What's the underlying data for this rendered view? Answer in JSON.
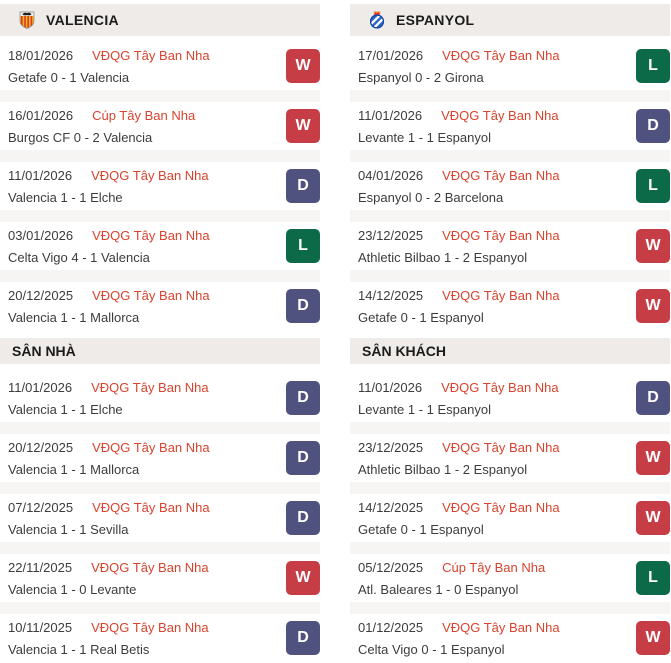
{
  "colors": {
    "win": "#c63d45",
    "draw": "#4f527e",
    "loss": "#0d6a48",
    "league_link": "#d8432e",
    "header_band_bg": "#eeebe8",
    "row_separator_bg": "#f7f5f3"
  },
  "left": {
    "team": "VALENCIA",
    "crest": "valencia-crest-icon",
    "recent": [
      {
        "date": "18/01/2026",
        "league": "VĐQG Tây Ban Nha",
        "score": "Getafe 0 - 1 Valencia",
        "result": "W"
      },
      {
        "date": "16/01/2026",
        "league": "Cúp Tây Ban Nha",
        "score": "Burgos CF 0 - 2 Valencia",
        "result": "W"
      },
      {
        "date": "11/01/2026",
        "league": "VĐQG Tây Ban Nha",
        "score": "Valencia 1 - 1 Elche",
        "result": "D"
      },
      {
        "date": "03/01/2026",
        "league": "VĐQG Tây Ban Nha",
        "score": "Celta Vigo 4 - 1 Valencia",
        "result": "L"
      },
      {
        "date": "20/12/2025",
        "league": "VĐQG Tây Ban Nha",
        "score": "Valencia 1 - 1 Mallorca",
        "result": "D"
      }
    ],
    "section_title": "SÂN NHÀ",
    "section": [
      {
        "date": "11/01/2026",
        "league": "VĐQG Tây Ban Nha",
        "score": "Valencia 1 - 1 Elche",
        "result": "D"
      },
      {
        "date": "20/12/2025",
        "league": "VĐQG Tây Ban Nha",
        "score": "Valencia 1 - 1 Mallorca",
        "result": "D"
      },
      {
        "date": "07/12/2025",
        "league": "VĐQG Tây Ban Nha",
        "score": "Valencia 1 - 1 Sevilla",
        "result": "D"
      },
      {
        "date": "22/11/2025",
        "league": "VĐQG Tây Ban Nha",
        "score": "Valencia 1 - 0 Levante",
        "result": "W"
      },
      {
        "date": "10/11/2025",
        "league": "VĐQG Tây Ban Nha",
        "score": "Valencia 1 - 1 Real Betis",
        "result": "D"
      }
    ]
  },
  "right": {
    "team": "ESPANYOL",
    "crest": "espanyol-crest-icon",
    "recent": [
      {
        "date": "17/01/2026",
        "league": "VĐQG Tây Ban Nha",
        "score": "Espanyol 0 - 2 Girona",
        "result": "L"
      },
      {
        "date": "11/01/2026",
        "league": "VĐQG Tây Ban Nha",
        "score": "Levante 1 - 1 Espanyol",
        "result": "D"
      },
      {
        "date": "04/01/2026",
        "league": "VĐQG Tây Ban Nha",
        "score": "Espanyol 0 - 2 Barcelona",
        "result": "L"
      },
      {
        "date": "23/12/2025",
        "league": "VĐQG Tây Ban Nha",
        "score": "Athletic Bilbao 1 - 2 Espanyol",
        "result": "W"
      },
      {
        "date": "14/12/2025",
        "league": "VĐQG Tây Ban Nha",
        "score": "Getafe 0 - 1 Espanyol",
        "result": "W"
      }
    ],
    "section_title": "SÂN KHÁCH",
    "section": [
      {
        "date": "11/01/2026",
        "league": "VĐQG Tây Ban Nha",
        "score": "Levante 1 - 1 Espanyol",
        "result": "D"
      },
      {
        "date": "23/12/2025",
        "league": "VĐQG Tây Ban Nha",
        "score": "Athletic Bilbao 1 - 2 Espanyol",
        "result": "W"
      },
      {
        "date": "14/12/2025",
        "league": "VĐQG Tây Ban Nha",
        "score": "Getafe 0 - 1 Espanyol",
        "result": "W"
      },
      {
        "date": "05/12/2025",
        "league": "Cúp Tây Ban Nha",
        "score": "Atl. Baleares 1 - 0 Espanyol",
        "result": "L"
      },
      {
        "date": "01/12/2025",
        "league": "VĐQG Tây Ban Nha",
        "score": "Celta Vigo 0 - 1 Espanyol",
        "result": "W"
      }
    ]
  }
}
